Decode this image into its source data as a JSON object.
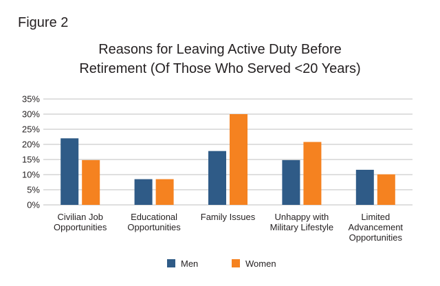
{
  "figure_label": "Figure 2",
  "chart_data": {
    "type": "bar",
    "title": "Reasons for Leaving Active Duty Before Retirement (Of Those Who Served <20 Years)",
    "title_lines": [
      "Reasons for Leaving Active Duty Before",
      "Retirement (Of Those Who Served <20 Years)"
    ],
    "categories": [
      [
        "Civilian Job",
        "Opportunities"
      ],
      [
        "Educational",
        "Opportunities"
      ],
      [
        "Family Issues"
      ],
      [
        "Unhappy with",
        "Military Lifestyle"
      ],
      [
        "Limited",
        "Advancement",
        "Opportunities"
      ]
    ],
    "series": [
      {
        "name": "Men",
        "color": "#2f5b87",
        "values": [
          22,
          8.5,
          17.8,
          14.8,
          11.6
        ]
      },
      {
        "name": "Women",
        "color": "#f58220",
        "values": [
          14.8,
          8.5,
          30,
          20.8,
          10.1
        ]
      }
    ],
    "yticks": [
      "0%",
      "5%",
      "10%",
      "15%",
      "20%",
      "25%",
      "30%",
      "35%"
    ],
    "ylim": [
      0,
      35
    ],
    "xlabel": "",
    "ylabel": "",
    "grid": true,
    "legend": "bottom-center"
  }
}
